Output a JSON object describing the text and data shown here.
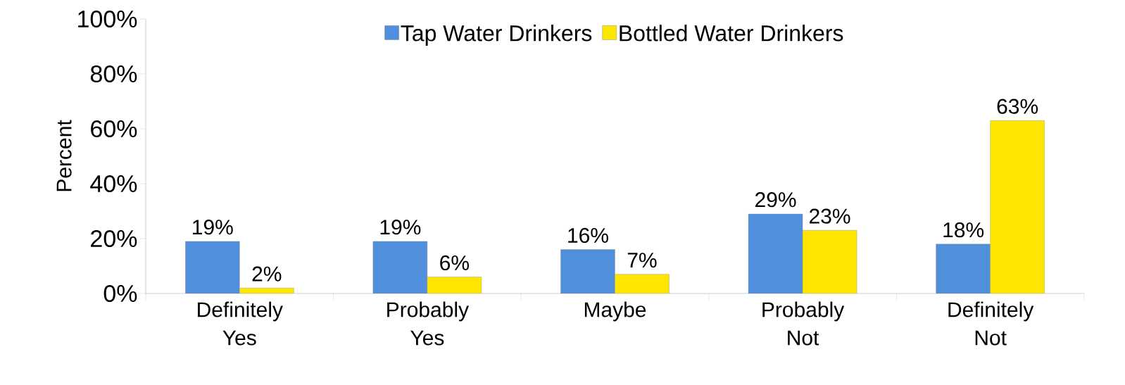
{
  "chart_data": {
    "type": "bar",
    "ylabel": "Percent",
    "categories": [
      "Definitely Yes",
      "Probably Yes",
      "Maybe",
      "Probably Not",
      "Definitely Not"
    ],
    "series": [
      {
        "name": "Tap Water Drinkers",
        "color": "#4f8fdc",
        "values": [
          19,
          19,
          16,
          29,
          18
        ],
        "value_labels": [
          "19%",
          "19%",
          "16%",
          "29%",
          "18%"
        ]
      },
      {
        "name": "Bottled Water Drinkers",
        "color": "#ffe600",
        "values": [
          2,
          6,
          7,
          23,
          63
        ],
        "value_labels": [
          "2%",
          "6%",
          "7%",
          "23%",
          "63%"
        ]
      }
    ],
    "ylim": [
      0,
      100
    ],
    "yticks": [
      {
        "value": 0,
        "label": "0%"
      },
      {
        "value": 20,
        "label": "20%"
      },
      {
        "value": 40,
        "label": "40%"
      },
      {
        "value": 60,
        "label": "60%"
      },
      {
        "value": 80,
        "label": "80%"
      },
      {
        "value": 100,
        "label": "100%"
      }
    ],
    "legend": "top"
  }
}
